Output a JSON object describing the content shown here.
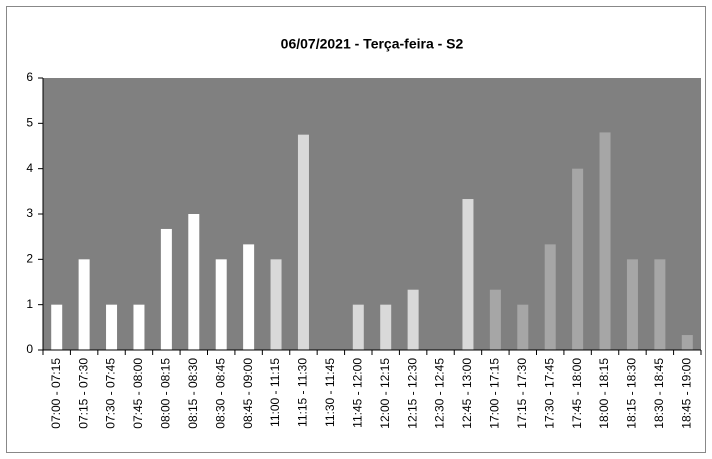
{
  "chart_data": {
    "type": "bar",
    "title": "06/07/2021 - Terça-feira - S2",
    "categories": [
      "07:00 - 07:15",
      "07:15 - 07:30",
      "07:30 - 07:45",
      "07:45 - 08:00",
      "08:00 - 08:15",
      "08:15 - 08:30",
      "08:30 - 08:45",
      "08:45 - 09:00",
      "11:00 - 11:15",
      "11:15 - 11:30",
      "11:30 - 11:45",
      "11:45 - 12:00",
      "12:00 - 12:15",
      "12:15 - 12:30",
      "12:30 - 12:45",
      "12:45 - 13:00",
      "17:00 - 17:15",
      "17:15 - 17:30",
      "17:30 - 17:45",
      "17:45 - 18:00",
      "18:00 - 18:15",
      "18:15 - 18:30",
      "18:30 - 18:45",
      "18:45 - 19:00"
    ],
    "values": [
      1,
      2,
      1,
      1,
      2.67,
      3,
      2,
      2.33,
      2,
      4.75,
      0,
      1,
      1,
      1.33,
      0,
      3.33,
      1.33,
      1,
      2.33,
      4,
      4.8,
      2,
      2,
      0.33
    ],
    "colors": [
      "#ffffff",
      "#ffffff",
      "#ffffff",
      "#ffffff",
      "#ffffff",
      "#ffffff",
      "#ffffff",
      "#ffffff",
      "#d9d9d9",
      "#d9d9d9",
      "#d9d9d9",
      "#d9d9d9",
      "#d9d9d9",
      "#d9d9d9",
      "#d9d9d9",
      "#d9d9d9",
      "#a6a6a6",
      "#a6a6a6",
      "#a6a6a6",
      "#a6a6a6",
      "#a6a6a6",
      "#a6a6a6",
      "#a6a6a6",
      "#a6a6a6"
    ],
    "plot_background": "#808080",
    "ylim": [
      0,
      6
    ],
    "yticks": [
      0,
      1,
      2,
      3,
      4,
      5,
      6
    ]
  }
}
